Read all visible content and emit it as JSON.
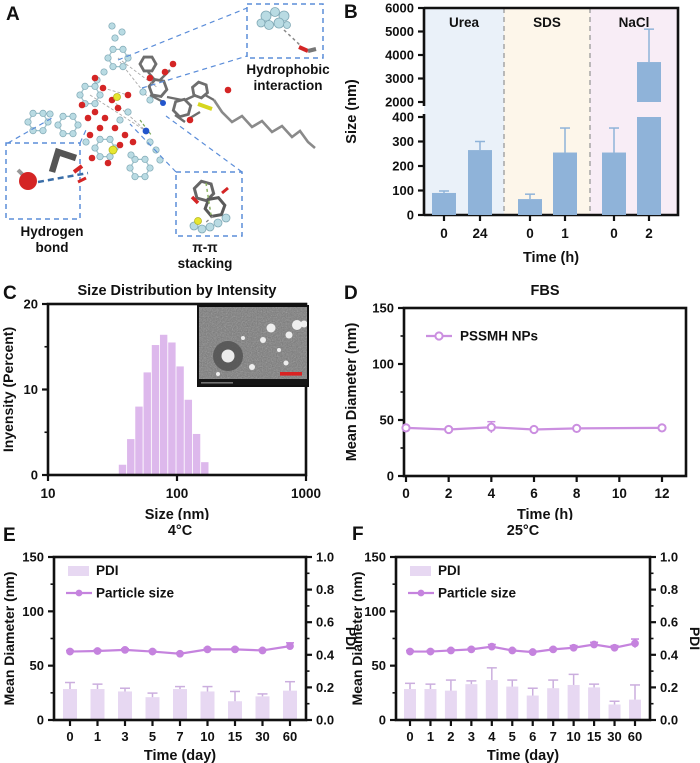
{
  "panels": {
    "a": {
      "letter": "A",
      "labels": {
        "hydrophobic": "Hydrophobic\ninteraction",
        "hydrogen": "Hydrogen\nbond",
        "pipi": "π-π\nstacking"
      }
    },
    "b": {
      "letter": "B"
    },
    "c": {
      "letter": "C"
    },
    "d": {
      "letter": "D"
    },
    "e": {
      "letter": "E"
    },
    "f": {
      "letter": "F"
    }
  },
  "chart_data": [
    {
      "panel": "B",
      "type": "bar",
      "title": "",
      "groups": [
        {
          "label": "Urea",
          "bg": "#eaf1f9"
        },
        {
          "label": "SDS",
          "bg": "#fdf6ea"
        },
        {
          "label": "NaCl",
          "bg": "#f8edf6"
        }
      ],
      "categories": [
        "0",
        "24",
        "0",
        "1",
        "0",
        "2"
      ],
      "values": [
        90,
        265,
        65,
        255,
        255,
        3700
      ],
      "errors": [
        8,
        35,
        20,
        100,
        100,
        1400
      ],
      "bar_color": "#8fb3d9",
      "xlabel": "Time (h)",
      "ylabel": "Size (nm)",
      "axis_break": {
        "lower_range": [
          0,
          400
        ],
        "upper_range": [
          2000,
          6000
        ],
        "lower_ticks": [
          0,
          100,
          200,
          300,
          400
        ],
        "upper_ticks": [
          2000,
          3000,
          4000,
          5000,
          6000
        ]
      }
    },
    {
      "panel": "C",
      "type": "bar",
      "title": "Size Distribution by Intensity",
      "xlabel": "Size (nm)",
      "ylabel": "Inyensity (Percent)",
      "x_scale": "log",
      "xlim": [
        10,
        1000
      ],
      "ylim": [
        0,
        20
      ],
      "xticks": [
        10,
        100,
        1000
      ],
      "yticks": [
        0,
        10,
        20
      ],
      "bin_centers_nm": [
        37.8,
        43.8,
        50.7,
        58.8,
        68.1,
        78.8,
        91.3,
        105.7,
        122.4,
        141.8,
        164.2
      ],
      "values": [
        1.2,
        4.2,
        8,
        12,
        15.2,
        16.4,
        15.5,
        12.7,
        8.8,
        4.8,
        1.5
      ],
      "bar_color": "#ddb8ec",
      "inset": {
        "kind": "TEM micrograph of nanoparticles",
        "scale_bar_color": "#d92323"
      }
    },
    {
      "panel": "D",
      "type": "line",
      "title": "FBS",
      "xlabel": "Time (h)",
      "ylabel": "Mean Diameter (nm)",
      "xlim": [
        0,
        12
      ],
      "ylim": [
        0,
        150
      ],
      "xticks": [
        0,
        2,
        4,
        6,
        8,
        10,
        12
      ],
      "yticks": [
        0,
        50,
        100,
        150
      ],
      "series": [
        {
          "name": "PSSMH NPs",
          "x": [
            0,
            2,
            4,
            6,
            8,
            12
          ],
          "y": [
            43,
            41.5,
            43.5,
            41.5,
            42.5,
            43
          ],
          "errors": [
            1.5,
            1.5,
            5,
            1.5,
            1.5,
            1.5
          ],
          "color": "#cb8fe0"
        }
      ]
    },
    {
      "panel": "E",
      "type": "bar+line",
      "title": "4°C",
      "xlabel": "Time (day)",
      "ylabel_left": "Mean Diameter (nm)",
      "ylabel_right": "PDI",
      "categories": [
        "0",
        "1",
        "3",
        "5",
        "7",
        "10",
        "15",
        "30",
        "60"
      ],
      "ylim_left": [
        0,
        150
      ],
      "ylim_right": [
        0,
        1.0
      ],
      "yticks_left": [
        0,
        50,
        100,
        150
      ],
      "yticks_right": [
        0,
        0.2,
        0.4,
        0.6,
        0.8,
        1.0
      ],
      "bar_series": {
        "name": "PDI",
        "axis": "right",
        "values": [
          0.19,
          0.19,
          0.175,
          0.14,
          0.19,
          0.175,
          0.115,
          0.145,
          0.18
        ],
        "errors": [
          0.04,
          0.03,
          0.02,
          0.025,
          0.015,
          0.03,
          0.06,
          0.015,
          0.055
        ],
        "color": "#e7d8f2"
      },
      "line_series": {
        "name": "Particle size",
        "axis": "left",
        "values": [
          63,
          63.5,
          64.5,
          63,
          61,
          65,
          65,
          64,
          68
        ],
        "errors": [
          1,
          1,
          1,
          1,
          1,
          1,
          1,
          1,
          3
        ],
        "color": "#c583de"
      }
    },
    {
      "panel": "F",
      "type": "bar+line",
      "title": "25°C",
      "xlabel": "Time (day)",
      "ylabel_left": "Mean Diameter (nm)",
      "ylabel_right": "PDI",
      "categories": [
        "0",
        "1",
        "2",
        "3",
        "4",
        "5",
        "6",
        "7",
        "10",
        "15",
        "30",
        "60"
      ],
      "ylim_left": [
        0,
        150
      ],
      "ylim_right": [
        0,
        1.0
      ],
      "yticks_left": [
        0,
        50,
        100,
        150
      ],
      "yticks_right": [
        0,
        0.2,
        0.4,
        0.6,
        0.8,
        1.0
      ],
      "bar_series": {
        "name": "PDI",
        "axis": "right",
        "values": [
          0.19,
          0.19,
          0.18,
          0.22,
          0.245,
          0.205,
          0.15,
          0.195,
          0.215,
          0.2,
          0.095,
          0.125
        ],
        "errors": [
          0.035,
          0.03,
          0.065,
          0.02,
          0.075,
          0.04,
          0.045,
          0.05,
          0.065,
          0.02,
          0.02,
          0.09
        ],
        "color": "#e7d8f2"
      },
      "line_series": {
        "name": "Particle size",
        "axis": "left",
        "values": [
          63,
          63,
          64,
          65,
          67.5,
          64,
          62.5,
          65,
          66.5,
          69.5,
          66.5,
          70.5
        ],
        "errors": [
          1,
          1,
          1,
          1,
          2,
          1,
          1,
          1,
          2,
          2,
          2,
          4
        ],
        "color": "#c583de"
      }
    }
  ]
}
